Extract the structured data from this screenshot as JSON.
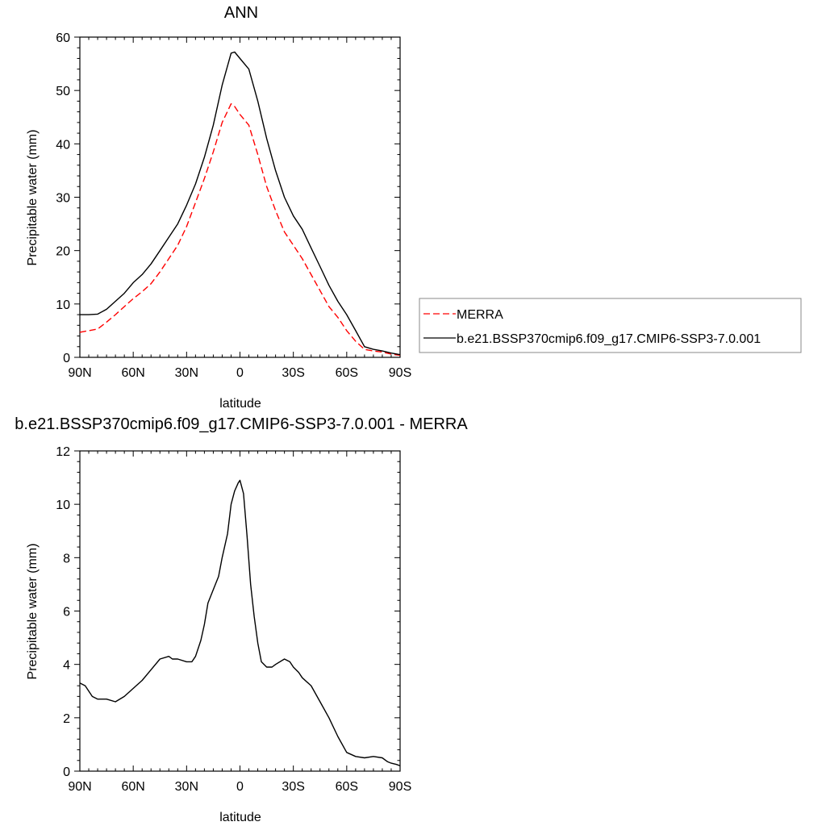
{
  "chart_data": [
    {
      "type": "line",
      "title": "ANN",
      "xlabel": "latitude",
      "ylabel": "Precipitable water (mm)",
      "xlim": [
        90,
        -90
      ],
      "ylim": [
        0,
        60
      ],
      "xtick_values": [
        90,
        60,
        30,
        0,
        -30,
        -60,
        -90
      ],
      "xtick_labels": [
        "90N",
        "60N",
        "30N",
        "0",
        "30S",
        "60S",
        "90S"
      ],
      "ytick_values": [
        0,
        10,
        20,
        30,
        40,
        50,
        60
      ],
      "ytick_labels": [
        "0",
        "10",
        "20",
        "30",
        "40",
        "50",
        "60"
      ],
      "x_unit": "degrees latitude (positive = N, negative = S)",
      "legend_position": "right",
      "grid": false,
      "series": [
        {
          "name": "MERRA",
          "color": "#ff0000",
          "dash": "dashed",
          "x": [
            90,
            85,
            80,
            75,
            70,
            65,
            60,
            55,
            50,
            45,
            40,
            35,
            30,
            25,
            20,
            15,
            10,
            5,
            3,
            0,
            -5,
            -10,
            -15,
            -20,
            -25,
            -30,
            -35,
            -40,
            -45,
            -50,
            -55,
            -60,
            -65,
            -70,
            -75,
            -80,
            -85,
            -90
          ],
          "values": [
            4.7,
            5.0,
            5.3,
            6.6,
            8.0,
            9.5,
            11.0,
            12.3,
            13.8,
            16.0,
            18.5,
            21.0,
            24.5,
            29.0,
            33.5,
            38.5,
            44.0,
            47.5,
            47.0,
            45.5,
            43.5,
            38.0,
            32.0,
            27.5,
            23.5,
            21.0,
            18.5,
            15.5,
            12.5,
            9.5,
            7.5,
            5.0,
            3.0,
            1.5,
            1.2,
            1.0,
            0.6,
            0.4
          ]
        },
        {
          "name": "b.e21.BSSP370cmip6.f09_g17.CMIP6-SSP3-7.0.001",
          "color": "#000000",
          "dash": "solid",
          "x": [
            90,
            85,
            80,
            75,
            70,
            65,
            60,
            55,
            50,
            45,
            40,
            35,
            30,
            25,
            20,
            15,
            10,
            5,
            3,
            0,
            -5,
            -10,
            -15,
            -20,
            -25,
            -30,
            -35,
            -40,
            -45,
            -50,
            -55,
            -60,
            -65,
            -70,
            -75,
            -80,
            -85,
            -90
          ],
          "values": [
            8.0,
            8.0,
            8.1,
            9.0,
            10.5,
            12.0,
            14.0,
            15.5,
            17.5,
            20.0,
            22.5,
            25.0,
            28.5,
            32.5,
            37.5,
            43.5,
            51.0,
            57.0,
            57.2,
            56.0,
            54.0,
            48.0,
            41.0,
            35.0,
            30.0,
            26.5,
            24.0,
            20.5,
            17.0,
            13.5,
            10.5,
            8.0,
            5.0,
            2.0,
            1.5,
            1.2,
            0.8,
            0.5
          ]
        }
      ]
    },
    {
      "type": "line",
      "title": "b.e21.BSSP370cmip6.f09_g17.CMIP6-SSP3-7.0.001 - MERRA",
      "xlabel": "latitude",
      "ylabel": "Precipitable water (mm)",
      "xlim": [
        90,
        -90
      ],
      "ylim": [
        0,
        12
      ],
      "xtick_values": [
        90,
        60,
        30,
        0,
        -30,
        -60,
        -90
      ],
      "xtick_labels": [
        "90N",
        "60N",
        "30N",
        "0",
        "30S",
        "60S",
        "90S"
      ],
      "ytick_values": [
        0,
        2,
        4,
        6,
        8,
        10,
        12
      ],
      "ytick_labels": [
        "0",
        "2",
        "4",
        "6",
        "8",
        "10",
        "12"
      ],
      "x_unit": "degrees latitude (positive = N, negative = S)",
      "grid": false,
      "series": [
        {
          "color": "#000000",
          "dash": "solid",
          "x": [
            90,
            87,
            85,
            83,
            80,
            75,
            70,
            65,
            60,
            55,
            50,
            45,
            40,
            38,
            35,
            30,
            27,
            25,
            22,
            20,
            18,
            15,
            12,
            10,
            7,
            5,
            3,
            1,
            0,
            -2,
            -4,
            -6,
            -8,
            -10,
            -12,
            -15,
            -18,
            -20,
            -25,
            -28,
            -30,
            -33,
            -35,
            -40,
            -45,
            -50,
            -55,
            -60,
            -65,
            -70,
            -75,
            -80,
            -83,
            -85,
            -88,
            -90
          ],
          "values": [
            3.3,
            3.2,
            3.0,
            2.8,
            2.7,
            2.7,
            2.6,
            2.8,
            3.1,
            3.4,
            3.8,
            4.2,
            4.3,
            4.2,
            4.2,
            4.1,
            4.1,
            4.3,
            4.9,
            5.5,
            6.3,
            6.8,
            7.3,
            8.0,
            8.9,
            10.0,
            10.5,
            10.8,
            10.9,
            10.4,
            8.8,
            7.0,
            5.8,
            4.8,
            4.1,
            3.9,
            3.9,
            4.0,
            4.2,
            4.1,
            3.9,
            3.7,
            3.5,
            3.2,
            2.6,
            2.0,
            1.3,
            0.7,
            0.55,
            0.5,
            0.55,
            0.5,
            0.35,
            0.3,
            0.25,
            0.2
          ]
        }
      ]
    }
  ]
}
